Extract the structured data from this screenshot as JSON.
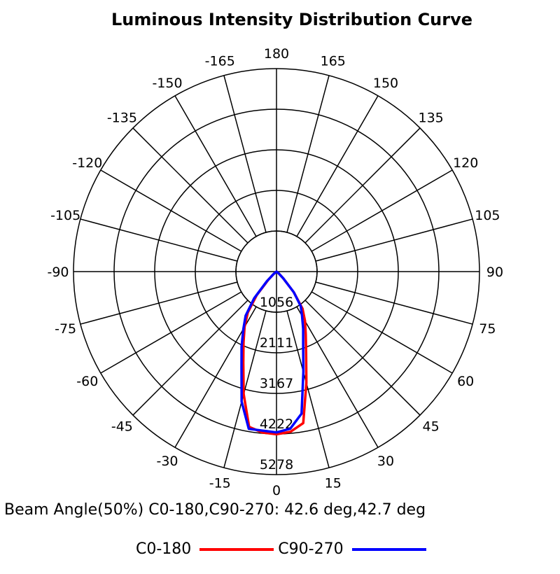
{
  "chart_data": {
    "type": "polar",
    "title": "Luminous Intensity Distribution Curve",
    "rings": [
      1056,
      2111,
      3167,
      4222,
      5278
    ],
    "rmax": 5278,
    "angle_labels": [
      0,
      15,
      30,
      45,
      60,
      75,
      90,
      105,
      120,
      135,
      150,
      165,
      180,
      -165,
      -150,
      -135,
      -120,
      -105,
      -90,
      -75,
      -60,
      -45,
      -30,
      -15
    ],
    "series": [
      {
        "name": "C0-180",
        "color": "#ff0000",
        "angles": [
          -90,
          -60,
          -50,
          -45,
          -40,
          -35,
          -30,
          -25,
          -20,
          -15,
          -10,
          -5,
          0,
          5,
          10,
          15,
          20,
          25,
          30,
          35,
          40,
          45,
          50,
          60,
          90
        ],
        "values": [
          0,
          0,
          80,
          300,
          800,
          1300,
          1660,
          2030,
          2520,
          3300,
          4100,
          4200,
          4230,
          4180,
          4000,
          3000,
          2250,
          1800,
          1480,
          1180,
          700,
          250,
          80,
          0,
          0
        ]
      },
      {
        "name": "C90-270",
        "color": "#0000ff",
        "angles": [
          -90,
          -60,
          -50,
          -45,
          -40,
          -35,
          -30,
          -25,
          -20,
          -15,
          -10,
          -5,
          0,
          5,
          10,
          15,
          20,
          25,
          30,
          35,
          40,
          45,
          50,
          60,
          90
        ],
        "values": [
          0,
          0,
          100,
          350,
          900,
          1400,
          1720,
          2150,
          2660,
          3500,
          4150,
          4150,
          4180,
          4100,
          3750,
          2700,
          2030,
          1640,
          1330,
          1100,
          700,
          250,
          80,
          0,
          0
        ]
      }
    ],
    "beam_angle_text": "Beam Angle(50%) C0-180,C90-270: 42.6 deg,42.7 deg",
    "legend": "bottom"
  }
}
